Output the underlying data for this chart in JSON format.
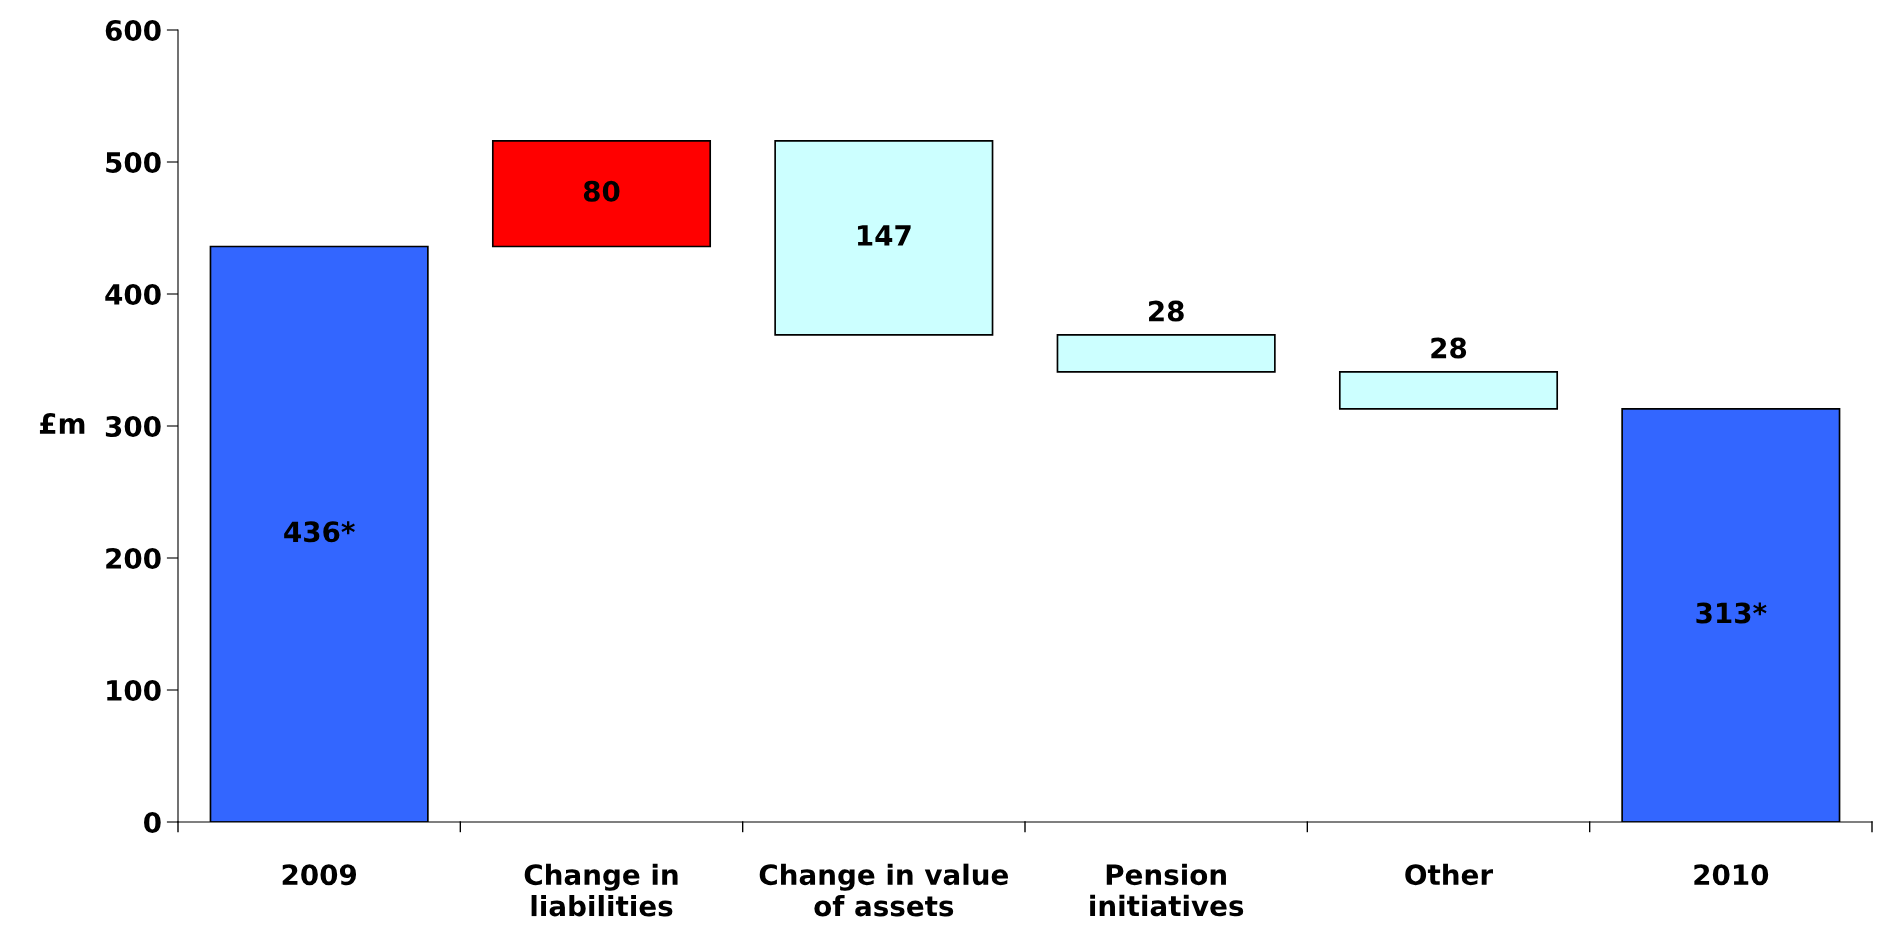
{
  "chart_data": {
    "type": "bar",
    "ylabel": "£m",
    "categories": [
      "2009",
      "Change in\nliabilities",
      "Change in value\nof assets",
      "Pension\ninitiatives",
      "Other",
      "2010"
    ],
    "values": [
      436,
      80,
      147,
      28,
      28,
      313
    ],
    "base": [
      0,
      436,
      369,
      341,
      313,
      0
    ],
    "colors": [
      "#3366ff",
      "#ff0000",
      "#ccffff",
      "#ccffff",
      "#ccffff",
      "#3366ff"
    ],
    "value_labels": [
      "436*",
      "80",
      "147",
      "28",
      "28",
      "313*"
    ],
    "ylim": [
      0,
      600
    ],
    "yticks": [
      0,
      100,
      200,
      300,
      400,
      500,
      600
    ],
    "grid": false,
    "legend": false
  }
}
